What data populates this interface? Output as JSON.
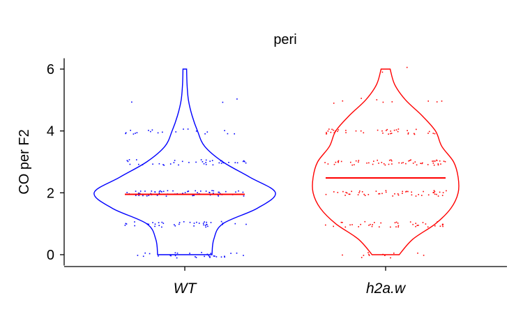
{
  "chart_data": {
    "type": "violin",
    "title": "peri",
    "xlabel": "",
    "ylabel": "CO per F2",
    "ylim": [
      -0.35,
      6.35
    ],
    "yticks": [
      0,
      2,
      4,
      6
    ],
    "categories": [
      "WT",
      "h2a.w"
    ],
    "series": [
      {
        "category": "WT",
        "color": "#0000ff",
        "median": 1.95,
        "points_per_value": [
          [
            0,
            30
          ],
          [
            1,
            40
          ],
          [
            2,
            70
          ],
          [
            3,
            40
          ],
          [
            4,
            20
          ],
          [
            5,
            3
          ]
        ],
        "violin_profile": [
          [
            0,
            0.3
          ],
          [
            0.5,
            0.32
          ],
          [
            1,
            0.42
          ],
          [
            1.5,
            0.8
          ],
          [
            2,
            1.0
          ],
          [
            2.5,
            0.72
          ],
          [
            3,
            0.42
          ],
          [
            3.5,
            0.22
          ],
          [
            4,
            0.14
          ],
          [
            4.5,
            0.08
          ],
          [
            5,
            0.04
          ],
          [
            5.5,
            0.025
          ],
          [
            6,
            0.02
          ]
        ]
      },
      {
        "category": "h2a.w",
        "color": "#ff0000",
        "median": 2.48,
        "points_per_value": [
          [
            0,
            12
          ],
          [
            1,
            40
          ],
          [
            2,
            50
          ],
          [
            3,
            55
          ],
          [
            4,
            40
          ],
          [
            5,
            9
          ],
          [
            6,
            2
          ]
        ],
        "violin_profile": [
          [
            0,
            0.15
          ],
          [
            0.5,
            0.3
          ],
          [
            1,
            0.55
          ],
          [
            1.5,
            0.72
          ],
          [
            2,
            0.8
          ],
          [
            2.5,
            0.8
          ],
          [
            3,
            0.75
          ],
          [
            3.5,
            0.62
          ],
          [
            4,
            0.55
          ],
          [
            4.5,
            0.4
          ],
          [
            5,
            0.22
          ],
          [
            5.5,
            0.1
          ],
          [
            6,
            0.05
          ]
        ]
      }
    ]
  }
}
